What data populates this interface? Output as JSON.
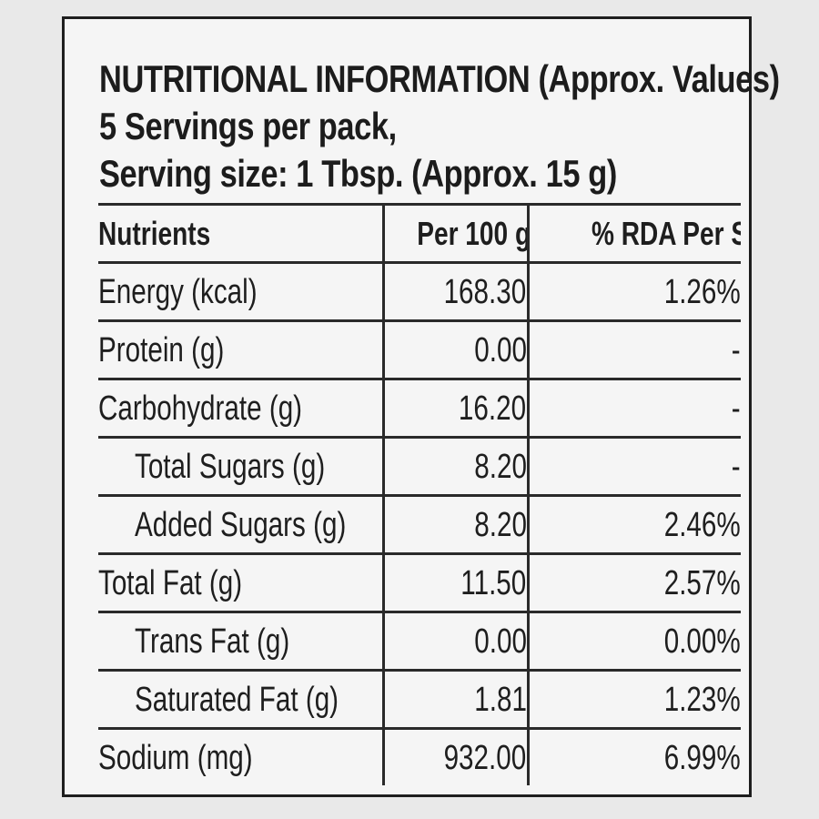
{
  "header": {
    "title": "NUTRITIONAL INFORMATION",
    "title_suffix": " (Approx. Values)",
    "servings": "5 Servings per pack,",
    "serving_size": "Serving size: 1 Tbsp. (Approx. 15 g)"
  },
  "table": {
    "columns": [
      "Nutrients",
      "Per 100 g",
      "% RDA Per Serve*"
    ],
    "rows": [
      {
        "name": "Energy (kcal)",
        "per100g": "168.30",
        "rda": "1.26%",
        "indent": false
      },
      {
        "name": "Protein (g)",
        "per100g": "0.00",
        "rda": "-",
        "indent": false
      },
      {
        "name": "Carbohydrate (g)",
        "per100g": "16.20",
        "rda": "-",
        "indent": false
      },
      {
        "name": "Total Sugars (g)",
        "per100g": "8.20",
        "rda": "-",
        "indent": true
      },
      {
        "name": "Added Sugars (g)",
        "per100g": "8.20",
        "rda": "2.46%",
        "indent": true
      },
      {
        "name": "Total Fat (g)",
        "per100g": "11.50",
        "rda": "2.57%",
        "indent": false
      },
      {
        "name": "Trans Fat (g)",
        "per100g": "0.00",
        "rda": "0.00%",
        "indent": true
      },
      {
        "name": "Saturated Fat (g)",
        "per100g": "1.81",
        "rda": "1.23%",
        "indent": true
      },
      {
        "name": "Sodium (mg)",
        "per100g": "932.00",
        "rda": "6.99%",
        "indent": false
      }
    ]
  }
}
